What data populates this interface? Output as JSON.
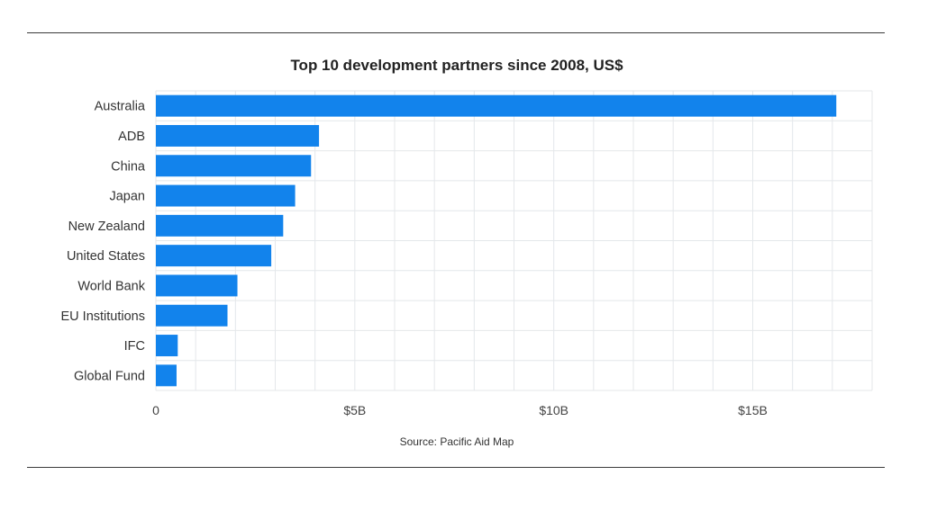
{
  "chart_data": {
    "type": "bar",
    "orientation": "horizontal",
    "title": "Top 10 development partners since 2008, US$",
    "source": "Source: Pacific Aid Map",
    "categories": [
      "Australia",
      "ADB",
      "China",
      "Japan",
      "New Zealand",
      "United States",
      "World Bank",
      "EU Institutions",
      "IFC",
      "Global Fund"
    ],
    "values": [
      17.1,
      4.1,
      3.9,
      3.5,
      3.2,
      2.9,
      2.05,
      1.8,
      0.55,
      0.52
    ],
    "unit": "US$ billions",
    "xlim": [
      0,
      18
    ],
    "ticks": [
      {
        "value": 0,
        "label": "0"
      },
      {
        "value": 5,
        "label": "$5B"
      },
      {
        "value": 10,
        "label": "$10B"
      },
      {
        "value": 15,
        "label": "$15B"
      }
    ],
    "grid": true,
    "bar_color": "#1283ec",
    "grid_color": "#e4e7ea"
  }
}
